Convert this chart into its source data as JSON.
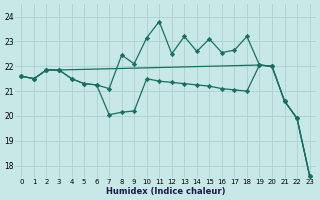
{
  "xlabel": "Humidex (Indice chaleur)",
  "bg_color": "#c8e8e8",
  "grid_color": "#b0d4d4",
  "line_color": "#1a6e60",
  "xlim": [
    -0.5,
    23.5
  ],
  "ylim": [
    17.5,
    24.5
  ],
  "yticks": [
    18,
    19,
    20,
    21,
    22,
    23,
    24
  ],
  "xticks": [
    0,
    1,
    2,
    3,
    4,
    5,
    6,
    7,
    8,
    9,
    10,
    11,
    12,
    13,
    14,
    15,
    16,
    17,
    18,
    19,
    20,
    21,
    22,
    23
  ],
  "series": [
    {
      "x": [
        0,
        1,
        2,
        3,
        4,
        5,
        6,
        7,
        8,
        9,
        10,
        11,
        12,
        13,
        14,
        15,
        16,
        17,
        18,
        19,
        20,
        21,
        22,
        23
      ],
      "y": [
        21.6,
        21.5,
        21.85,
        21.85,
        21.5,
        21.3,
        21.25,
        21.1,
        22.45,
        22.1,
        23.15,
        23.8,
        22.5,
        23.2,
        22.6,
        23.1,
        22.55,
        22.65,
        23.2,
        22.05,
        22.0,
        20.6,
        19.9,
        17.6
      ]
    },
    {
      "x": [
        0,
        1,
        2,
        3,
        19,
        20,
        21,
        22,
        23
      ],
      "y": [
        21.6,
        21.5,
        21.85,
        21.85,
        22.05,
        22.0,
        20.6,
        19.9,
        17.6
      ]
    },
    {
      "x": [
        0,
        1,
        2,
        3,
        4,
        5,
        6,
        7,
        8,
        9,
        10,
        11,
        12,
        13,
        14,
        15,
        16,
        17,
        18,
        19,
        20,
        21,
        22,
        23
      ],
      "y": [
        21.6,
        21.5,
        21.85,
        21.85,
        21.5,
        21.3,
        21.25,
        20.05,
        20.15,
        20.2,
        21.5,
        21.4,
        21.35,
        21.3,
        21.25,
        21.2,
        21.1,
        21.05,
        21.0,
        22.05,
        22.0,
        20.6,
        19.9,
        17.6
      ]
    }
  ]
}
